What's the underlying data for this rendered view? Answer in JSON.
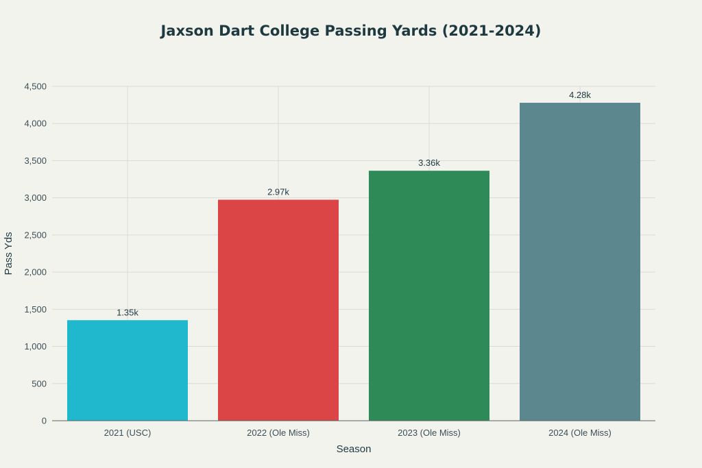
{
  "chart_data": {
    "type": "bar",
    "title": "Jaxson Dart College Passing Yards (2021-2024)",
    "xlabel": "Season",
    "ylabel": "Pass Yds",
    "categories": [
      "2021 (USC)",
      "2022 (Ole Miss)",
      "2023 (Ole Miss)",
      "2024 (Ole Miss)"
    ],
    "values": [
      1353,
      2974,
      3364,
      4279
    ],
    "data_labels": [
      "1.35k",
      "2.97k",
      "3.36k",
      "4.28k"
    ],
    "colors": [
      "#1fb8cd",
      "#db4545",
      "#2e8b57",
      "#5d878f"
    ],
    "ylim": [
      0,
      4500
    ],
    "y_ticks": [
      0,
      500,
      1000,
      1500,
      2000,
      2500,
      3000,
      3500,
      4000,
      4500
    ],
    "y_tick_labels": [
      "0",
      "500",
      "1,000",
      "1,500",
      "2,000",
      "2,500",
      "3,000",
      "3,500",
      "4,000",
      "4,500"
    ],
    "grid": true,
    "legend": "none"
  }
}
